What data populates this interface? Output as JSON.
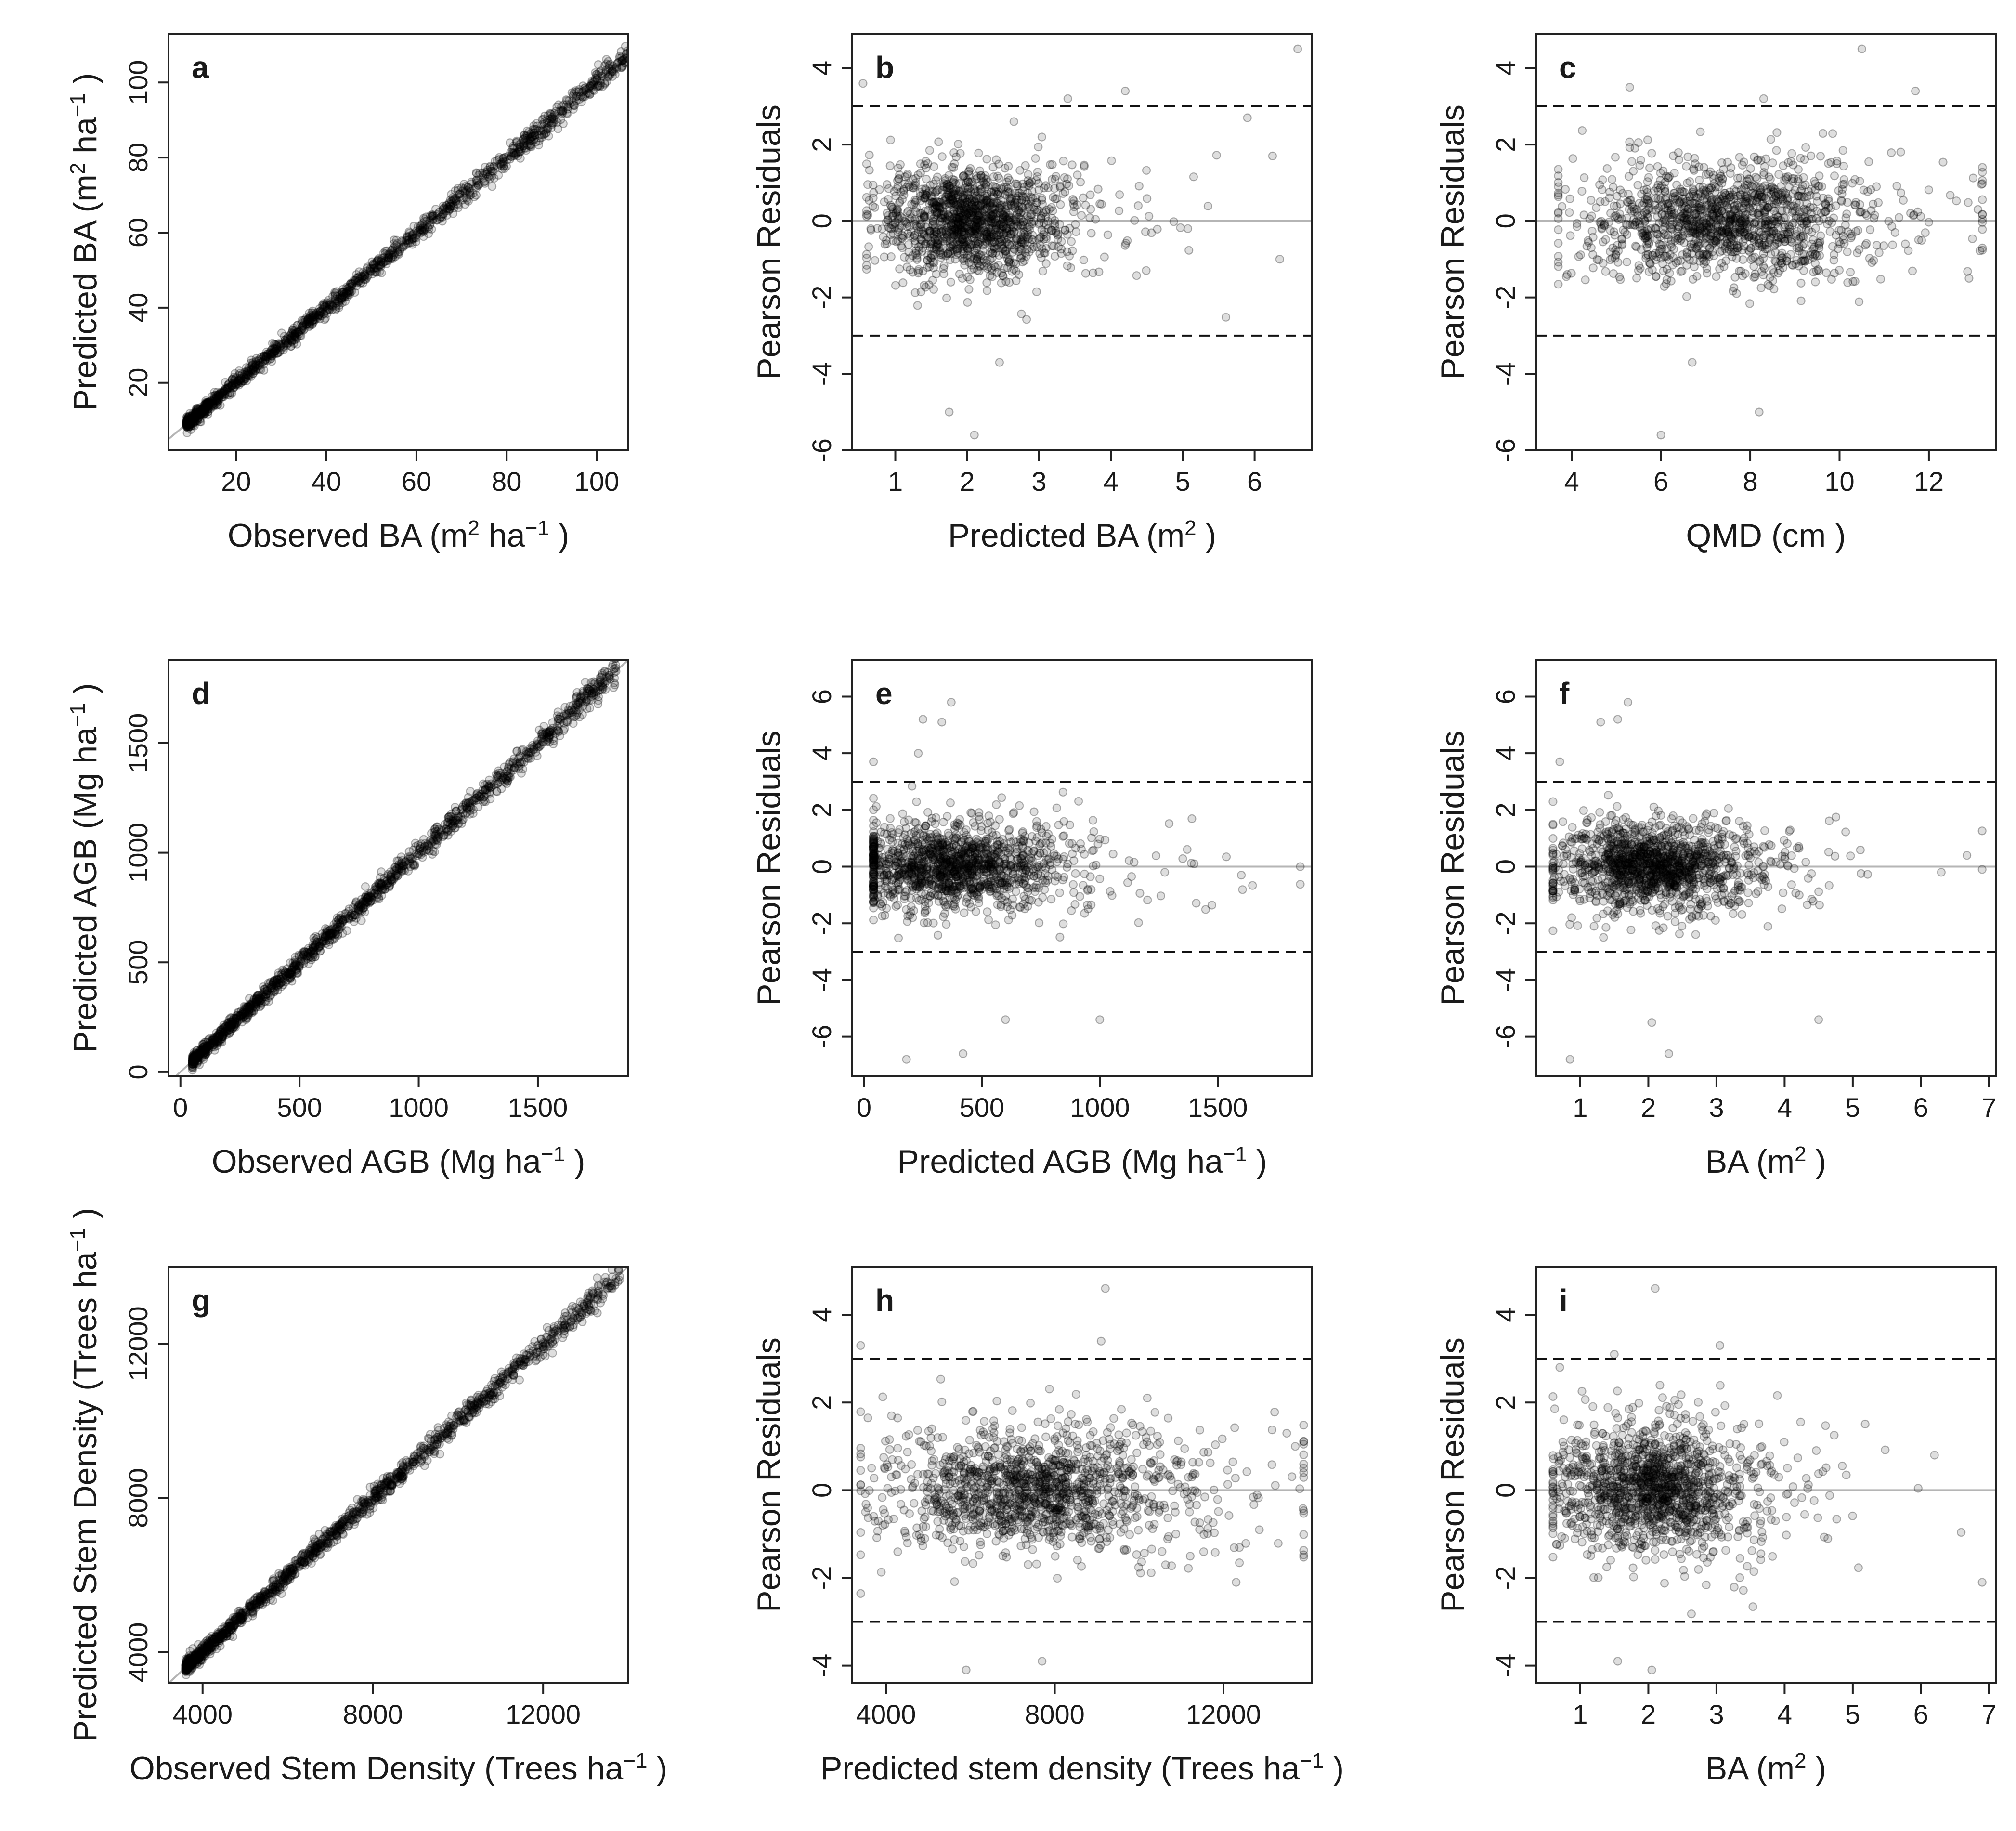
{
  "chart_data": [
    {
      "panel": "a",
      "type": "scatter",
      "reference": "identity",
      "xlabel": "Observed BA (m² ha⁻¹ )",
      "ylabel": "Predicted BA (m² ha⁻¹ )",
      "xlim": [
        5,
        107
      ],
      "ylim": [
        2,
        113
      ],
      "xticks": [
        20,
        40,
        60,
        80,
        100
      ],
      "yticks": [
        20,
        40,
        60,
        80,
        100
      ],
      "data_range": [
        9,
        110
      ],
      "n_points": 1400,
      "spread": 0.9
    },
    {
      "panel": "b",
      "type": "scatter",
      "reference": "zero",
      "xlabel": "Predicted BA (m² )",
      "ylabel": "Pearson Residuals",
      "xlim": [
        0.4,
        6.8
      ],
      "ylim": [
        -6,
        4.9
      ],
      "xticks": [
        1,
        2,
        3,
        4,
        5,
        6
      ],
      "yticks": [
        -6,
        -4,
        -2,
        0,
        2,
        4
      ],
      "thresholds": [
        3,
        -3
      ],
      "x_center": 2.0,
      "x_sd": 0.6,
      "x_min": 0.6,
      "x_max": 6.6,
      "n_points": 1400,
      "res_sd": 0.65,
      "outliers": [
        [
          0.55,
          3.6
        ],
        [
          6.6,
          4.5
        ],
        [
          2.65,
          2.6
        ],
        [
          5.9,
          2.7
        ],
        [
          6.25,
          1.7
        ],
        [
          6.35,
          -1.0
        ],
        [
          1.75,
          -5.0
        ],
        [
          2.1,
          -5.6
        ],
        [
          2.45,
          -3.7
        ],
        [
          3.4,
          3.2
        ],
        [
          4.2,
          3.4
        ]
      ]
    },
    {
      "panel": "c",
      "type": "scatter",
      "reference": "zero",
      "xlabel": "QMD (cm )",
      "ylabel": "Pearson Residuals",
      "xlim": [
        3.2,
        13.5
      ],
      "ylim": [
        -6,
        4.9
      ],
      "xticks": [
        4,
        6,
        8,
        10,
        12
      ],
      "yticks": [
        -6,
        -4,
        -2,
        0,
        2,
        4
      ],
      "thresholds": [
        3,
        -3
      ],
      "x_center": 7.2,
      "x_sd": 1.5,
      "x_min": 3.7,
      "x_max": 13.2,
      "n_points": 1400,
      "res_sd": 0.65,
      "outliers": [
        [
          10.5,
          4.5
        ],
        [
          5.3,
          3.5
        ],
        [
          8.3,
          3.2
        ],
        [
          6.7,
          -3.7
        ],
        [
          8.2,
          -5.0
        ],
        [
          6.0,
          -5.6
        ],
        [
          11.7,
          3.4
        ],
        [
          13.1,
          0.3
        ],
        [
          12.9,
          -1.5
        ],
        [
          3.9,
          -1.4
        ]
      ]
    },
    {
      "panel": "d",
      "type": "scatter",
      "reference": "identity",
      "xlabel": "Observed AGB (Mg ha⁻¹ )",
      "ylabel": "Predicted AGB (Mg ha⁻¹ )",
      "xlim": [
        -50,
        1880
      ],
      "ylim": [
        -20,
        1880
      ],
      "xticks": [
        0,
        500,
        1000,
        1500
      ],
      "yticks": [
        0,
        500,
        1000,
        1500
      ],
      "data_range": [
        50,
        1830
      ],
      "n_points": 1400,
      "spread": 16
    },
    {
      "panel": "e",
      "type": "scatter",
      "reference": "zero",
      "xlabel": "Predicted AGB (Mg ha⁻¹ )",
      "ylabel": "Pearson Residuals",
      "xlim": [
        -50,
        1900
      ],
      "ylim": [
        -7.4,
        7.3
      ],
      "xticks": [
        0,
        500,
        1000,
        1500
      ],
      "yticks": [
        -6,
        -4,
        -2,
        0,
        2,
        4,
        6
      ],
      "thresholds": [
        3,
        -3
      ],
      "x_center": 350,
      "x_sd": 230,
      "x_min": 40,
      "x_max": 1850,
      "n_points": 1400,
      "res_sd": 0.7,
      "outliers": [
        [
          370,
          5.8
        ],
        [
          250,
          5.2
        ],
        [
          330,
          5.1
        ],
        [
          230,
          4.0
        ],
        [
          180,
          -6.8
        ],
        [
          420,
          -6.6
        ],
        [
          1000,
          -5.4
        ],
        [
          600,
          -5.4
        ],
        [
          40,
          3.7
        ],
        [
          1850,
          0.0
        ],
        [
          1600,
          -0.3
        ],
        [
          1400,
          0.1
        ]
      ]
    },
    {
      "panel": "f",
      "type": "scatter",
      "reference": "zero",
      "xlabel": "BA (m² )",
      "ylabel": "Pearson Residuals",
      "xlim": [
        0.35,
        7.1
      ],
      "ylim": [
        -7.4,
        7.3
      ],
      "xticks": [
        1,
        2,
        3,
        4,
        5,
        6,
        7
      ],
      "yticks": [
        -6,
        -4,
        -2,
        0,
        2,
        4,
        6
      ],
      "thresholds": [
        3,
        -3
      ],
      "x_center": 2.0,
      "x_sd": 0.7,
      "x_min": 0.6,
      "x_max": 6.9,
      "n_points": 1400,
      "res_sd": 0.7,
      "outliers": [
        [
          1.7,
          5.8
        ],
        [
          1.55,
          5.2
        ],
        [
          1.3,
          5.1
        ],
        [
          0.7,
          3.7
        ],
        [
          0.85,
          -6.8
        ],
        [
          2.05,
          -5.5
        ],
        [
          2.3,
          -6.6
        ],
        [
          4.5,
          -5.4
        ],
        [
          6.9,
          -0.1
        ],
        [
          6.3,
          -0.2
        ]
      ]
    },
    {
      "panel": "g",
      "type": "scatter",
      "reference": "identity",
      "xlabel": "Observed Stem Density (Trees  ha⁻¹ )",
      "ylabel": "Predicted Stem Density (Trees  ha⁻¹ )",
      "xlim": [
        3200,
        14000
      ],
      "ylim": [
        3200,
        14000
      ],
      "xticks": [
        4000,
        8000,
        12000
      ],
      "yticks": [
        4000,
        8000,
        12000
      ],
      "data_range": [
        3600,
        13800
      ],
      "n_points": 1400,
      "spread": 90
    },
    {
      "panel": "h",
      "type": "scatter",
      "reference": "zero",
      "xlabel": "Predicted stem density (Trees  ha⁻¹ )",
      "ylabel": "Pearson Residuals",
      "xlim": [
        3200,
        14100
      ],
      "ylim": [
        -4.4,
        5.1
      ],
      "xticks": [
        4000,
        8000,
        12000
      ],
      "yticks": [
        -4,
        -2,
        0,
        2,
        4
      ],
      "thresholds": [
        3,
        -3
      ],
      "x_center": 7300,
      "x_sd": 1700,
      "x_min": 3400,
      "x_max": 13900,
      "n_points": 1400,
      "res_sd": 0.65,
      "outliers": [
        [
          9200,
          4.6
        ],
        [
          3400,
          3.3
        ],
        [
          5900,
          -4.1
        ],
        [
          7700,
          -3.9
        ],
        [
          9100,
          3.4
        ],
        [
          13700,
          1.0
        ],
        [
          13500,
          1.3
        ],
        [
          12300,
          -2.1
        ]
      ]
    },
    {
      "panel": "i",
      "type": "scatter",
      "reference": "zero",
      "xlabel": "BA (m² )",
      "ylabel": "Pearson Residuals",
      "xlim": [
        0.35,
        7.1
      ],
      "ylim": [
        -4.4,
        5.1
      ],
      "xticks": [
        1,
        2,
        3,
        4,
        5,
        6,
        7
      ],
      "yticks": [
        -4,
        -2,
        0,
        2,
        4
      ],
      "thresholds": [
        3,
        -3
      ],
      "x_center": 2.0,
      "x_sd": 0.7,
      "x_min": 0.6,
      "x_max": 6.9,
      "n_points": 1400,
      "res_sd": 0.65,
      "outliers": [
        [
          2.1,
          4.6
        ],
        [
          1.5,
          3.1
        ],
        [
          2.05,
          -4.1
        ],
        [
          1.55,
          -3.9
        ],
        [
          3.05,
          3.3
        ],
        [
          6.9,
          -2.1
        ],
        [
          6.2,
          0.8
        ],
        [
          0.7,
          2.8
        ]
      ]
    }
  ]
}
